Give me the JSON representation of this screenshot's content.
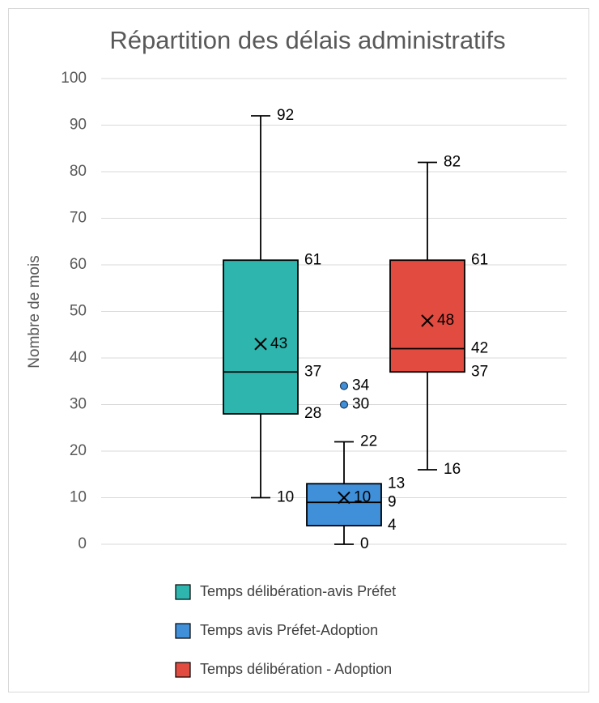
{
  "chart_data": {
    "type": "boxplot",
    "title": "Répartition des délais administratifs",
    "ylabel": "Nombre de mois",
    "ylim": [
      0,
      100
    ],
    "yticks": [
      0,
      10,
      20,
      30,
      40,
      50,
      60,
      70,
      80,
      90,
      100
    ],
    "legend_position": "bottom",
    "series": [
      {
        "name": "Temps délibération-avis Préfet",
        "color": "#2DB5AE",
        "min": 10,
        "q1": 28,
        "median": 37,
        "q3": 61,
        "max": 92,
        "mean": 43,
        "outliers": [],
        "labels": {
          "min": "10",
          "q1": "28",
          "median": "37",
          "q3": "61",
          "max": "92",
          "mean": "43"
        }
      },
      {
        "name": "Temps avis Préfet-Adoption",
        "color": "#3F8FD9",
        "min": 0,
        "q1": 4,
        "median": 9,
        "q3": 13,
        "max": 22,
        "mean": 10,
        "outliers": [
          30,
          34
        ],
        "labels": {
          "min": "0",
          "q1": "4",
          "median": "9",
          "q3": "13",
          "max": "22",
          "mean": "10"
        }
      },
      {
        "name": "Temps délibération - Adoption",
        "color": "#E24B40",
        "min": 16,
        "q1": 37,
        "median": 42,
        "q3": 61,
        "max": 82,
        "mean": 48,
        "outliers": [],
        "labels": {
          "min": "16",
          "q1": "37",
          "median": "42",
          "q3": "61",
          "max": "82",
          "mean": "48"
        }
      }
    ]
  }
}
